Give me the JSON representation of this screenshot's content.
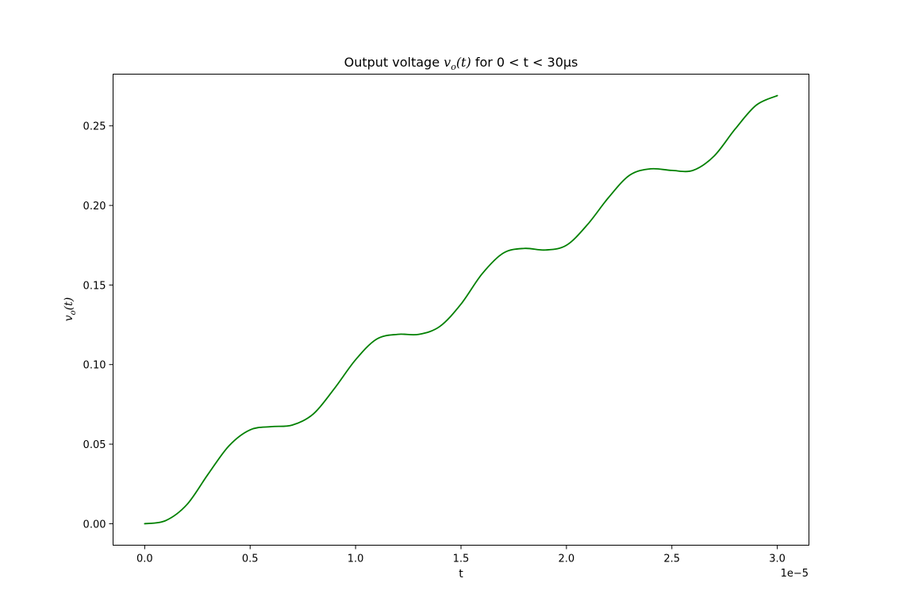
{
  "chart_data": {
    "type": "line",
    "title": {
      "prefix": "Output voltage ",
      "var_main": "v",
      "var_sub": "o",
      "var_arg": "(t)",
      "suffix": " for  0 < t < 30μs"
    },
    "xlabel": "t",
    "ylabel": {
      "main": "v",
      "sub": "o",
      "arg": "(t)"
    },
    "x_offset_label": "1e−5",
    "xlim": [
      -0.15,
      3.15
    ],
    "ylim": [
      -0.0135,
      0.2825
    ],
    "x_ticks": [
      0.0,
      0.5,
      1.0,
      1.5,
      2.0,
      2.5,
      3.0
    ],
    "x_tick_labels": [
      "0.0",
      "0.5",
      "1.0",
      "1.5",
      "2.0",
      "2.5",
      "3.0"
    ],
    "y_ticks": [
      0.0,
      0.05,
      0.1,
      0.15,
      0.2,
      0.25
    ],
    "y_tick_labels": [
      "0.00",
      "0.05",
      "0.10",
      "0.15",
      "0.20",
      "0.25"
    ],
    "series": [
      {
        "name": "vo(t)",
        "color": "#008000",
        "x": [
          0.0,
          0.1,
          0.2,
          0.3,
          0.4,
          0.5,
          0.6,
          0.7,
          0.8,
          0.9,
          1.0,
          1.1,
          1.2,
          1.3,
          1.4,
          1.5,
          1.6,
          1.7,
          1.8,
          1.9,
          2.0,
          2.1,
          2.2,
          2.3,
          2.4,
          2.5,
          2.6,
          2.7,
          2.8,
          2.9,
          3.0
        ],
        "y": [
          0.0,
          0.002,
          0.012,
          0.031,
          0.049,
          0.059,
          0.061,
          0.062,
          0.069,
          0.085,
          0.103,
          0.116,
          0.119,
          0.119,
          0.124,
          0.138,
          0.157,
          0.17,
          0.173,
          0.172,
          0.175,
          0.188,
          0.205,
          0.219,
          0.223,
          0.222,
          0.222,
          0.231,
          0.248,
          0.263,
          0.269
        ]
      }
    ]
  }
}
